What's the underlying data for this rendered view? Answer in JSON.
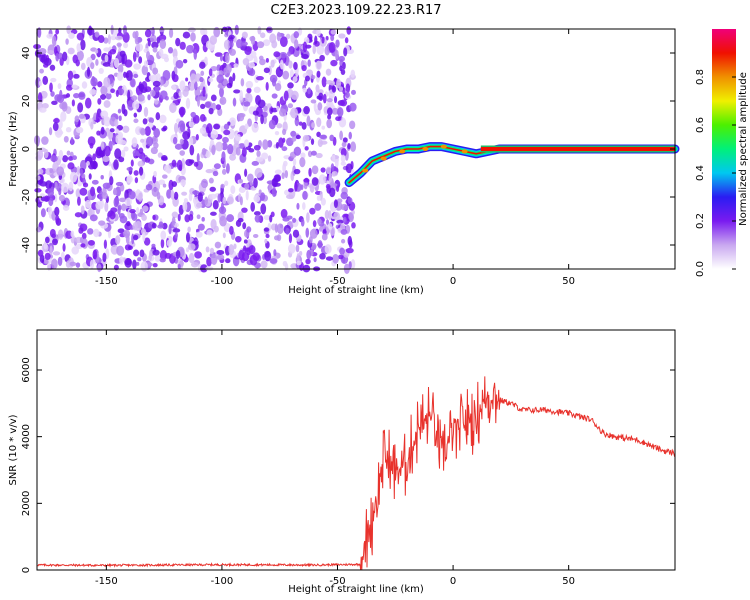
{
  "title": "C2E3.2023.109.22.23.R17",
  "chart_data": [
    {
      "type": "heatmap",
      "title": "C2E3.2023.109.22.23.R17",
      "xlabel": "Height of straight line (km)",
      "ylabel": "Frequency (Hz)",
      "xlim": [
        -180,
        96
      ],
      "ylim": [
        -50,
        50
      ],
      "xticks": [
        -150,
        -100,
        -50,
        0,
        50
      ],
      "yticks": [
        -40,
        -20,
        0,
        20,
        40
      ],
      "noise_region_x": [
        -180,
        -43
      ],
      "signal_track": {
        "x": [
          -45,
          -40,
          -35,
          -30,
          -25,
          -20,
          -15,
          -10,
          -5,
          0,
          5,
          10,
          20,
          40,
          60,
          80,
          96
        ],
        "y": [
          -14,
          -10,
          -5,
          -3,
          -1,
          0,
          0,
          1,
          1,
          0,
          -1,
          -2,
          0,
          0,
          0,
          0,
          0
        ]
      },
      "colorbar": {
        "label": "Normalized spectral amplitude",
        "range": [
          0,
          1
        ],
        "ticks": [
          "0.0",
          "0.2",
          "0.4",
          "0.6",
          "0.8"
        ],
        "tick_values": [
          0.0,
          0.2,
          0.4,
          0.6,
          0.8
        ],
        "colors": [
          "#ffffff",
          "#c9a8f0",
          "#7a1bf0",
          "#2a1cf2",
          "#00c8f0",
          "#00f07a",
          "#4cf000",
          "#f0f000",
          "#f09000",
          "#f01000",
          "#f0007a"
        ]
      }
    },
    {
      "type": "line",
      "xlabel": "Height of straight line (km)",
      "ylabel": "SNR (10 * v/v)",
      "xlim": [
        -180,
        96
      ],
      "ylim": [
        0,
        7200
      ],
      "xticks": [
        -150,
        -100,
        -50,
        0,
        50
      ],
      "yticks": [
        0,
        2000,
        4000,
        6000
      ],
      "series": [
        {
          "color": "#e8322c",
          "x": [
            -180,
            -150,
            -100,
            -60,
            -40,
            -38,
            -35,
            -32,
            -30,
            -25,
            -20,
            -15,
            -10,
            -5,
            0,
            5,
            10,
            15,
            20,
            25,
            30,
            40,
            50,
            60,
            65,
            70,
            80,
            90,
            96
          ],
          "y": [
            150,
            140,
            160,
            150,
            170,
            700,
            1500,
            2600,
            3400,
            3000,
            3200,
            4300,
            4600,
            3600,
            4000,
            4400,
            4600,
            5200,
            5100,
            5000,
            4800,
            4800,
            4700,
            4500,
            4100,
            4000,
            3900,
            3600,
            3500
          ]
        }
      ]
    }
  ]
}
